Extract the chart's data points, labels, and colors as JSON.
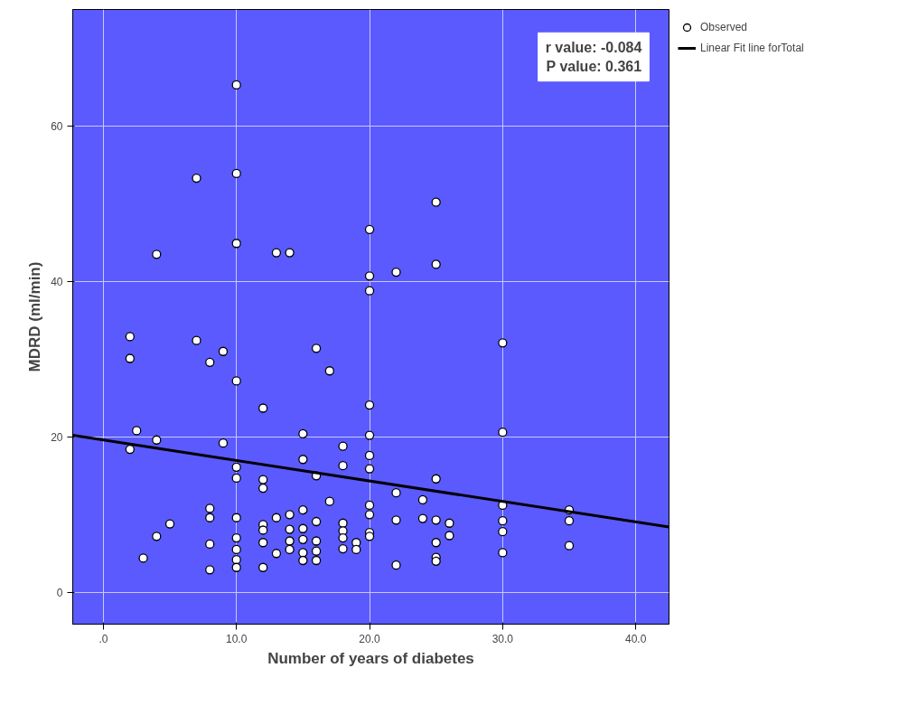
{
  "chart_data": {
    "type": "scatter",
    "xlabel": "Number of years of diabetes",
    "ylabel": "MDRD (ml/min)",
    "annotations": [
      "r value: -0.084",
      "P value: 0.361"
    ],
    "xlim": [
      -2.3,
      42.5
    ],
    "ylim": [
      -4.1,
      75
    ],
    "xticks": [
      {
        "value": 0,
        "label": ".0"
      },
      {
        "value": 10,
        "label": "10.0"
      },
      {
        "value": 20,
        "label": "20.0"
      },
      {
        "value": 30,
        "label": "30.0"
      },
      {
        "value": 40,
        "label": "40.0"
      }
    ],
    "yticks": [
      0,
      20,
      40,
      60
    ],
    "grid": true,
    "legend": "top right",
    "series": [
      {
        "name": "Observed",
        "marker": "circle",
        "color": "#ffffff",
        "x": [
          2,
          2,
          7,
          9,
          8,
          10,
          16,
          17,
          12,
          2.5,
          4,
          2,
          9,
          15,
          15,
          18,
          18,
          10,
          10,
          12,
          12,
          16,
          17,
          8,
          8,
          5,
          4,
          3,
          8,
          8,
          10,
          10,
          10,
          10,
          10,
          12,
          12,
          12,
          12,
          13,
          13,
          14,
          14,
          14,
          14,
          15,
          15,
          15,
          15,
          15,
          16,
          16,
          16,
          16,
          18,
          18,
          18,
          18,
          19,
          19,
          10,
          7,
          10,
          10,
          4,
          13,
          14,
          20,
          20,
          20,
          25,
          22,
          25,
          30,
          20,
          20,
          20,
          20,
          25,
          30,
          22,
          24,
          20,
          20,
          20,
          20,
          22,
          24,
          25,
          26,
          26,
          25,
          25,
          25,
          22,
          30,
          30,
          30,
          30,
          35,
          35,
          35
        ],
        "values": [
          32.9,
          30.1,
          32.4,
          31.0,
          29.6,
          27.2,
          31.4,
          28.5,
          23.7,
          20.8,
          19.6,
          18.4,
          19.2,
          20.4,
          17.1,
          18.8,
          16.3,
          16.1,
          14.7,
          14.5,
          13.4,
          15.0,
          11.7,
          10.8,
          9.6,
          8.8,
          7.2,
          4.4,
          6.2,
          2.9,
          9.6,
          7.0,
          5.5,
          4.2,
          3.2,
          8.7,
          8.0,
          6.4,
          3.2,
          9.6,
          5.0,
          10.0,
          8.1,
          6.6,
          5.5,
          10.6,
          8.2,
          6.8,
          5.1,
          4.1,
          9.1,
          6.6,
          5.3,
          4.1,
          8.9,
          7.9,
          7.0,
          5.6,
          6.4,
          5.5,
          65.3,
          53.3,
          53.9,
          44.9,
          43.5,
          43.7,
          43.7,
          46.7,
          40.7,
          38.8,
          50.2,
          41.2,
          42.2,
          32.1,
          24.1,
          20.2,
          17.6,
          15.9,
          14.6,
          20.6,
          12.8,
          11.9,
          11.2,
          10.0,
          7.7,
          7.2,
          9.3,
          9.5,
          9.3,
          8.9,
          7.3,
          6.4,
          4.5,
          4.0,
          3.5,
          11.2,
          9.2,
          7.8,
          5.1,
          10.6,
          9.2,
          6.0
        ]
      },
      {
        "name": "Linear Fit line forTotal",
        "type": "line",
        "color": "#000000",
        "x": [
          -2.3,
          42.5
        ],
        "values": [
          20.2,
          8.4
        ]
      }
    ]
  }
}
